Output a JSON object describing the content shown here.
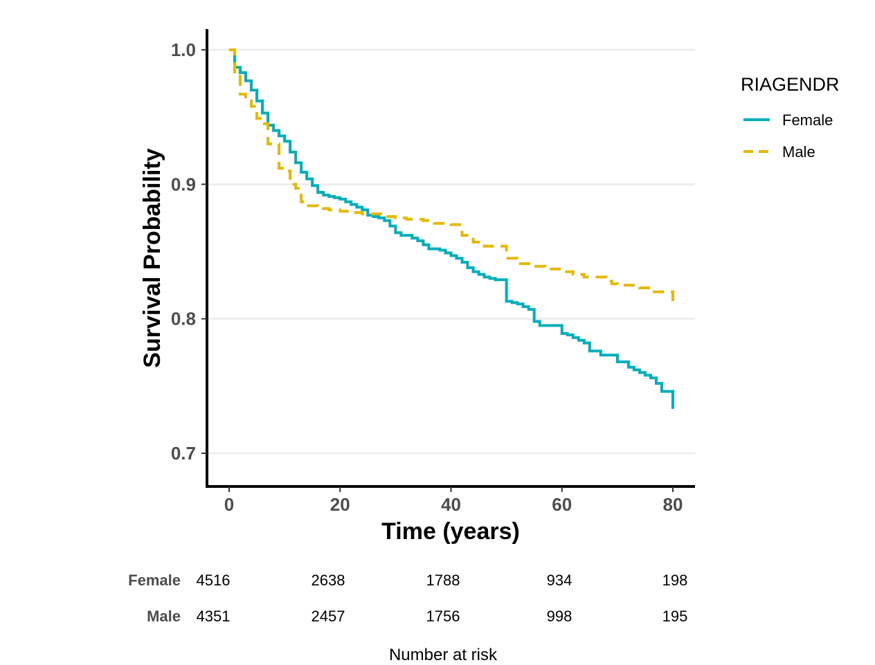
{
  "chart_data": {
    "type": "line",
    "xlabel": "Time (years)",
    "ylabel": "Survival Probability",
    "xlim": [
      -4,
      84
    ],
    "ylim": [
      0.675,
      1.015
    ],
    "x_ticks": [
      0,
      20,
      40,
      60,
      80
    ],
    "x_tick_labels": [
      "0",
      "20",
      "40",
      "60",
      "80"
    ],
    "y_ticks": [
      0.7,
      0.8,
      0.9,
      1.0
    ],
    "y_tick_labels": [
      "0.7",
      "0.8",
      "0.9",
      "1.0"
    ],
    "grid": "horizontal",
    "legend": {
      "title": "RIAGENDR",
      "position": "right"
    },
    "series": [
      {
        "name": "Female",
        "color": "#00AFBB",
        "dash": "solid",
        "step_points": [
          [
            0,
            1.0
          ],
          [
            1,
            0.987
          ],
          [
            2,
            0.983
          ],
          [
            3,
            0.977
          ],
          [
            4,
            0.97
          ],
          [
            5,
            0.962
          ],
          [
            6,
            0.953
          ],
          [
            7,
            0.944
          ],
          [
            8,
            0.94
          ],
          [
            9,
            0.936
          ],
          [
            10,
            0.932
          ],
          [
            11,
            0.924
          ],
          [
            12,
            0.916
          ],
          [
            13,
            0.909
          ],
          [
            14,
            0.904
          ],
          [
            15,
            0.899
          ],
          [
            16,
            0.894
          ],
          [
            17,
            0.892
          ],
          [
            18,
            0.891
          ],
          [
            19,
            0.89
          ],
          [
            20,
            0.889
          ],
          [
            21,
            0.887
          ],
          [
            22,
            0.885
          ],
          [
            23,
            0.883
          ],
          [
            24,
            0.881
          ],
          [
            25,
            0.877
          ],
          [
            26,
            0.876
          ],
          [
            27,
            0.875
          ],
          [
            28,
            0.873
          ],
          [
            29,
            0.869
          ],
          [
            30,
            0.864
          ],
          [
            31,
            0.862
          ],
          [
            33,
            0.86
          ],
          [
            34,
            0.858
          ],
          [
            35,
            0.855
          ],
          [
            36,
            0.852
          ],
          [
            38,
            0.851
          ],
          [
            39,
            0.849
          ],
          [
            40,
            0.847
          ],
          [
            41,
            0.845
          ],
          [
            42,
            0.842
          ],
          [
            43,
            0.838
          ],
          [
            44,
            0.835
          ],
          [
            45,
            0.833
          ],
          [
            46,
            0.831
          ],
          [
            47,
            0.83
          ],
          [
            48,
            0.829
          ],
          [
            50,
            0.813
          ],
          [
            51,
            0.812
          ],
          [
            52,
            0.811
          ],
          [
            53,
            0.809
          ],
          [
            54,
            0.807
          ],
          [
            55,
            0.798
          ],
          [
            56,
            0.795
          ],
          [
            60,
            0.789
          ],
          [
            61,
            0.788
          ],
          [
            62,
            0.786
          ],
          [
            63,
            0.784
          ],
          [
            64,
            0.782
          ],
          [
            65,
            0.776
          ],
          [
            67,
            0.773
          ],
          [
            70,
            0.768
          ],
          [
            72,
            0.764
          ],
          [
            73,
            0.762
          ],
          [
            74,
            0.76
          ],
          [
            75,
            0.758
          ],
          [
            76,
            0.756
          ],
          [
            77,
            0.752
          ],
          [
            78,
            0.746
          ],
          [
            80,
            0.733
          ]
        ]
      },
      {
        "name": "Male",
        "color": "#E7B800",
        "dash": "dashed",
        "step_points": [
          [
            0,
            1.0
          ],
          [
            1,
            0.982
          ],
          [
            2,
            0.967
          ],
          [
            3,
            0.962
          ],
          [
            4,
            0.958
          ],
          [
            5,
            0.949
          ],
          [
            6,
            0.945
          ],
          [
            7,
            0.93
          ],
          [
            8,
            0.93
          ],
          [
            9,
            0.912
          ],
          [
            10,
            0.91
          ],
          [
            11,
            0.9
          ],
          [
            12,
            0.897
          ],
          [
            13,
            0.887
          ],
          [
            14,
            0.884
          ],
          [
            16,
            0.883
          ],
          [
            17,
            0.882
          ],
          [
            18,
            0.881
          ],
          [
            20,
            0.88
          ],
          [
            22,
            0.879
          ],
          [
            24,
            0.878
          ],
          [
            26,
            0.878
          ],
          [
            28,
            0.876
          ],
          [
            30,
            0.875
          ],
          [
            32,
            0.874
          ],
          [
            35,
            0.873
          ],
          [
            37,
            0.871
          ],
          [
            40,
            0.87
          ],
          [
            42,
            0.862
          ],
          [
            44,
            0.857
          ],
          [
            46,
            0.854
          ],
          [
            50,
            0.845
          ],
          [
            52,
            0.841
          ],
          [
            55,
            0.839
          ],
          [
            57,
            0.837
          ],
          [
            60,
            0.835
          ],
          [
            62,
            0.833
          ],
          [
            64,
            0.831
          ],
          [
            68,
            0.828
          ],
          [
            69,
            0.826
          ],
          [
            70,
            0.825
          ],
          [
            74,
            0.823
          ],
          [
            76,
            0.82
          ],
          [
            80,
            0.808
          ]
        ]
      }
    ],
    "risk_table": {
      "title": "Number at risk",
      "times": [
        0,
        20,
        40,
        60,
        80
      ],
      "rows": [
        {
          "name": "Female",
          "values": [
            "4516",
            "2638",
            "1788",
            "934",
            "198"
          ]
        },
        {
          "name": "Male",
          "values": [
            "4351",
            "2457",
            "1756",
            "998",
            "195"
          ]
        }
      ]
    }
  }
}
